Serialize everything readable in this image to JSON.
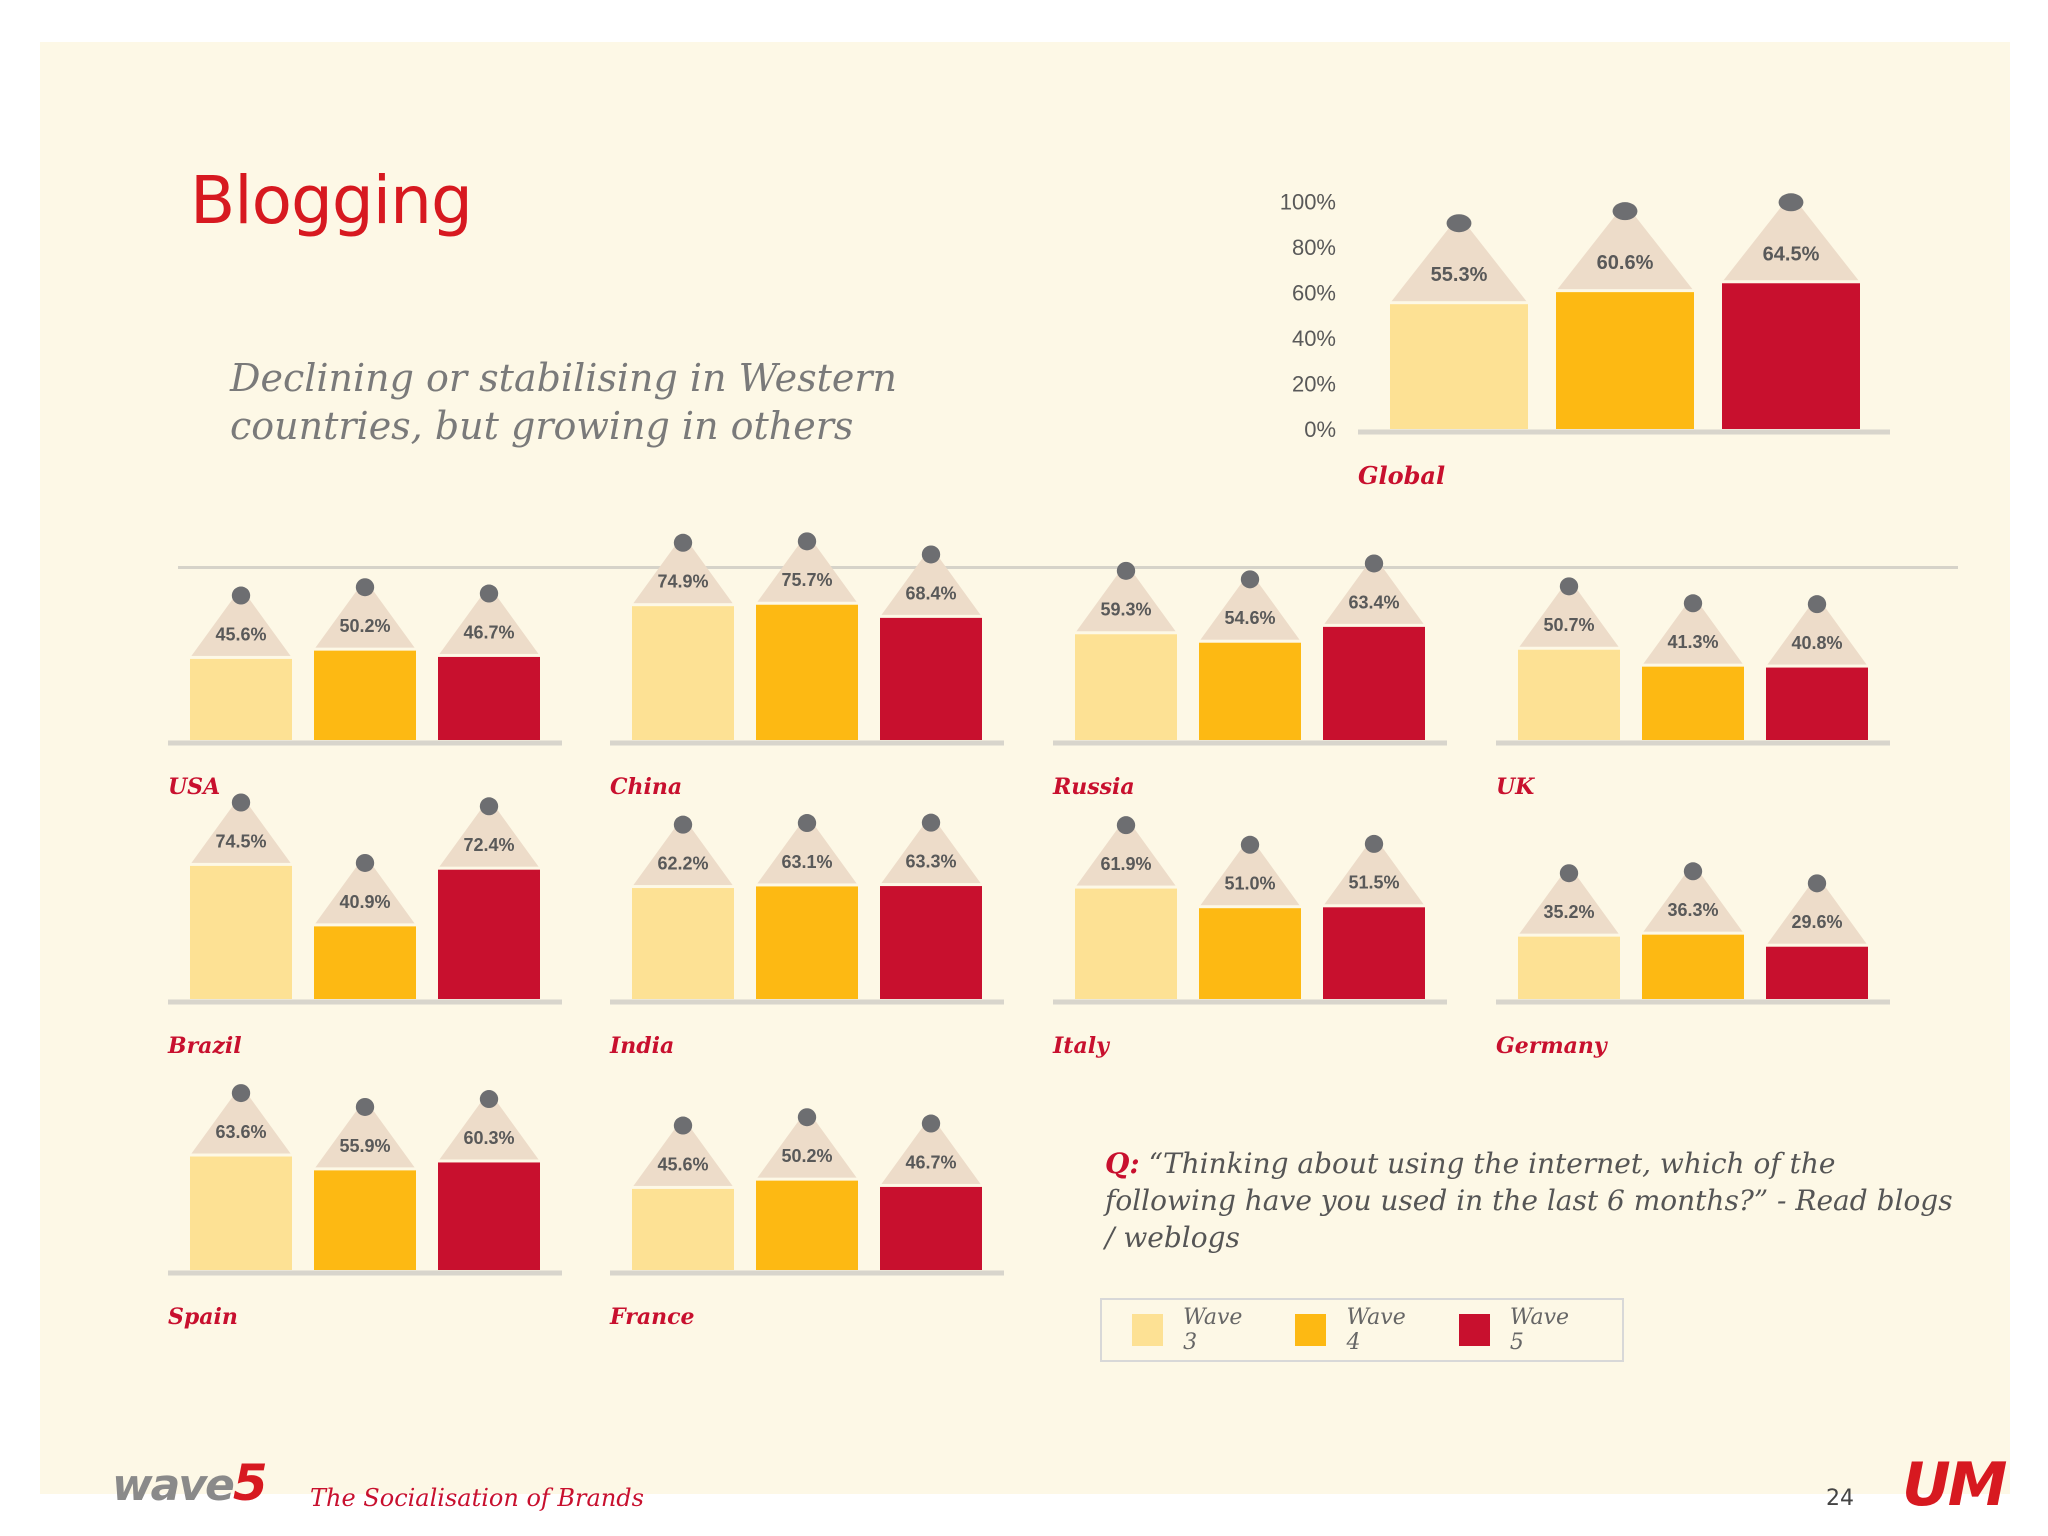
{
  "page": {
    "title": "Blogging",
    "subtitle": "Declining or stabilising in Western countries, but growing in others",
    "question_prefix": "Q:",
    "question_text": "“Thinking about using the internet, which of the following have you used in the last 6 months?” - Read blogs / weblogs",
    "footer_text": "The Socialisation of Brands",
    "page_number": "24",
    "logo_left": "wave",
    "logo_left_num": "5",
    "logo_right": "UM"
  },
  "legend": [
    {
      "label": "Wave 3",
      "color": "#fde194"
    },
    {
      "label": "Wave 4",
      "color": "#fdb913"
    },
    {
      "label": "Wave 5",
      "color": "#c8102e"
    }
  ],
  "chart_data": [
    {
      "type": "bar",
      "title": "Global",
      "categories": [
        "Wave 3",
        "Wave 4",
        "Wave 5"
      ],
      "values": [
        55.3,
        60.6,
        64.5
      ],
      "labels": [
        "55.3%",
        "60.6%",
        "64.5%"
      ],
      "ylim": [
        0,
        100
      ],
      "yticks": [
        "0%",
        "20%",
        "40%",
        "60%",
        "80%",
        "100%"
      ]
    },
    {
      "type": "bar",
      "title": "USA",
      "categories": [
        "Wave 3",
        "Wave 4",
        "Wave 5"
      ],
      "values": [
        45.6,
        50.2,
        46.7
      ],
      "labels": [
        "45.6%",
        "50.2%",
        "46.7%"
      ]
    },
    {
      "type": "bar",
      "title": "China",
      "categories": [
        "Wave 3",
        "Wave 4",
        "Wave 5"
      ],
      "values": [
        74.9,
        75.7,
        68.4
      ],
      "labels": [
        "74.9%",
        "75.7%",
        "68.4%"
      ]
    },
    {
      "type": "bar",
      "title": "Russia",
      "categories": [
        "Wave 3",
        "Wave 4",
        "Wave 5"
      ],
      "values": [
        59.3,
        54.6,
        63.4
      ],
      "labels": [
        "59.3%",
        "54.6%",
        "63.4%"
      ]
    },
    {
      "type": "bar",
      "title": "UK",
      "categories": [
        "Wave 3",
        "Wave 4",
        "Wave 5"
      ],
      "values": [
        50.7,
        41.3,
        40.8
      ],
      "labels": [
        "50.7%",
        "41.3%",
        "40.8%"
      ]
    },
    {
      "type": "bar",
      "title": "Brazil",
      "categories": [
        "Wave 3",
        "Wave 4",
        "Wave 5"
      ],
      "values": [
        74.5,
        40.9,
        72.4
      ],
      "labels": [
        "74.5%",
        "40.9%",
        "72.4%"
      ]
    },
    {
      "type": "bar",
      "title": "India",
      "categories": [
        "Wave 3",
        "Wave 4",
        "Wave 5"
      ],
      "values": [
        62.2,
        63.1,
        63.3
      ],
      "labels": [
        "62.2%",
        "63.1%",
        "63.3%"
      ]
    },
    {
      "type": "bar",
      "title": "Italy",
      "categories": [
        "Wave 3",
        "Wave 4",
        "Wave 5"
      ],
      "values": [
        61.9,
        51.0,
        51.5
      ],
      "labels": [
        "61.9%",
        "51.0%",
        "51.5%"
      ]
    },
    {
      "type": "bar",
      "title": "Germany",
      "categories": [
        "Wave 3",
        "Wave 4",
        "Wave 5"
      ],
      "values": [
        35.2,
        36.3,
        29.6
      ],
      "labels": [
        "35.2%",
        "36.3%",
        "29.6%"
      ]
    },
    {
      "type": "bar",
      "title": "Spain",
      "categories": [
        "Wave 3",
        "Wave 4",
        "Wave 5"
      ],
      "values": [
        63.6,
        55.9,
        60.3
      ],
      "labels": [
        "63.6%",
        "55.9%",
        "60.3%"
      ]
    },
    {
      "type": "bar",
      "title": "France",
      "categories": [
        "Wave 3",
        "Wave 4",
        "Wave 5"
      ],
      "values": [
        45.6,
        50.2,
        46.7
      ],
      "labels": [
        "45.6%",
        "50.2%",
        "46.7%"
      ]
    }
  ]
}
